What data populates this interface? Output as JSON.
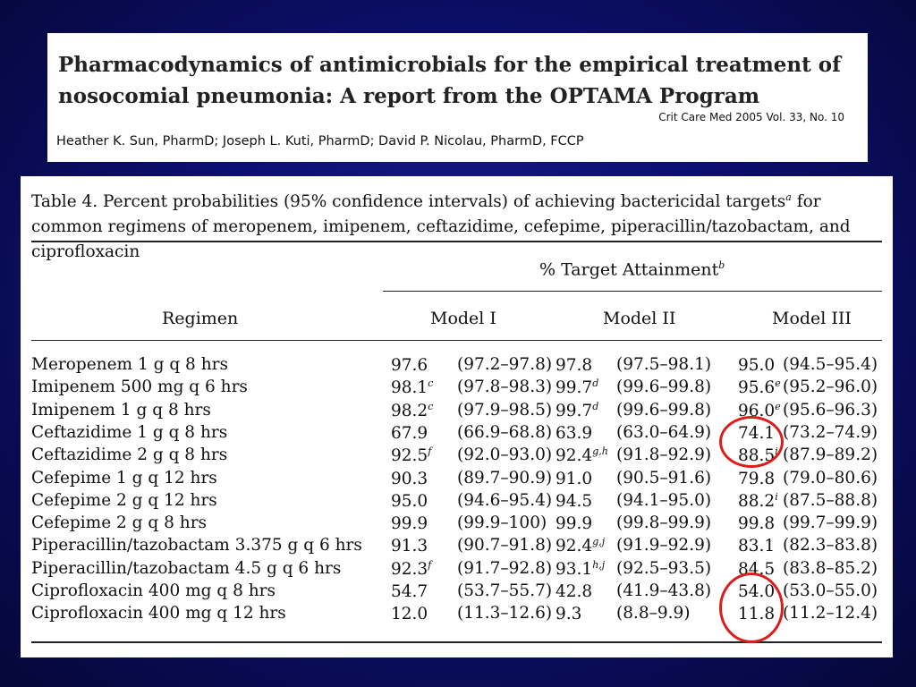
{
  "header": {
    "title": "Pharmacodynamics of antimicrobials for the empirical treatment of nosocomial pneumonia: A report from the OPTAMA Program",
    "citation": "Crit Care Med 2005 Vol. 33, No. 10",
    "authors": "Heather K. Sun, PharmD; Joseph L. Kuti, PharmD; David P. Nicolau, PharmD, FCCP"
  },
  "table": {
    "caption_pre": "Table 4. Percent probabilities (95% confidence intervals) of achieving bactericidal targets",
    "caption_sup": "a",
    "caption_post": " for common regimens of meropenem, imipenem, ceftazidime, cefepime, piperacillin/tazobactam, and ciprofloxacin",
    "span_header": "% Target Attainment",
    "span_header_sup": "b",
    "columns": [
      "Regimen",
      "Model I",
      "Model II",
      "Model III"
    ],
    "rows": [
      {
        "regimen": "Meropenem 1 g q 8 hrs",
        "m1": "97.6",
        "m1_sup": "",
        "m1_ci": "(97.2–97.8)",
        "m2": "97.8",
        "m2_sup": "",
        "m2_ci": "(97.5–98.1)",
        "m3": "95.0",
        "m3_sup": "",
        "m3_ci": "(94.5–95.4)"
      },
      {
        "regimen": "Imipenem 500 mg q 6 hrs",
        "m1": "98.1",
        "m1_sup": "c",
        "m1_ci": "(97.8–98.3)",
        "m2": "99.7",
        "m2_sup": "d",
        "m2_ci": "(99.6–99.8)",
        "m3": "95.6",
        "m3_sup": "e",
        "m3_ci": "(95.2–96.0)"
      },
      {
        "regimen": "Imipenem 1 g q 8 hrs",
        "m1": "98.2",
        "m1_sup": "c",
        "m1_ci": "(97.9–98.5)",
        "m2": "99.7",
        "m2_sup": "d",
        "m2_ci": "(99.6–99.8)",
        "m3": "96.0",
        "m3_sup": "e",
        "m3_ci": "(95.6–96.3)"
      },
      {
        "regimen": "Ceftazidime 1 g q 8 hrs",
        "m1": "67.9",
        "m1_sup": "",
        "m1_ci": "(66.9–68.8)",
        "m2": "63.9",
        "m2_sup": "",
        "m2_ci": "(63.0–64.9)",
        "m3": "74.1",
        "m3_sup": "",
        "m3_ci": "(73.2–74.9)"
      },
      {
        "regimen": "Ceftazidime 2 g q 8 hrs",
        "m1": "92.5",
        "m1_sup": "f",
        "m1_ci": "(92.0–93.0)",
        "m2": "92.4",
        "m2_sup": "g,h",
        "m2_ci": "(91.8–92.9)",
        "m3": "88.5",
        "m3_sup": "i",
        "m3_ci": "(87.9–89.2)"
      },
      {
        "regimen": "Cefepime 1 g q 12 hrs",
        "m1": "90.3",
        "m1_sup": "",
        "m1_ci": "(89.7–90.9)",
        "m2": "91.0",
        "m2_sup": "",
        "m2_ci": "(90.5–91.6)",
        "m3": "79.8",
        "m3_sup": "",
        "m3_ci": "(79.0–80.6)"
      },
      {
        "regimen": "Cefepime 2 g q 12 hrs",
        "m1": "95.0",
        "m1_sup": "",
        "m1_ci": "(94.6–95.4)",
        "m2": "94.5",
        "m2_sup": "",
        "m2_ci": "(94.1–95.0)",
        "m3": "88.2",
        "m3_sup": "i",
        "m3_ci": "(87.5–88.8)"
      },
      {
        "regimen": "Cefepime 2 g q 8 hrs",
        "m1": "99.9",
        "m1_sup": "",
        "m1_ci": "(99.9–100)",
        "m2": "99.9",
        "m2_sup": "",
        "m2_ci": "(99.8–99.9)",
        "m3": "99.8",
        "m3_sup": "",
        "m3_ci": "(99.7–99.9)"
      },
      {
        "regimen": "Piperacillin/tazobactam 3.375 g q 6 hrs",
        "m1": "91.3",
        "m1_sup": "",
        "m1_ci": "(90.7–91.8)",
        "m2": "92.4",
        "m2_sup": "g,j",
        "m2_ci": "(91.9–92.9)",
        "m3": "83.1",
        "m3_sup": "",
        "m3_ci": "(82.3–83.8)"
      },
      {
        "regimen": "Piperacillin/tazobactam 4.5 g q 6 hrs",
        "m1": "92.3",
        "m1_sup": "f",
        "m1_ci": "(91.7–92.8)",
        "m2": "93.1",
        "m2_sup": "h,j",
        "m2_ci": "(92.5–93.5)",
        "m3": "84.5",
        "m3_sup": "",
        "m3_ci": "(83.8–85.2)"
      },
      {
        "regimen": "Ciprofloxacin 400 mg q 8 hrs",
        "m1": "54.7",
        "m1_sup": "",
        "m1_ci": "(53.7–55.7)",
        "m2": "42.8",
        "m2_sup": "",
        "m2_ci": "(41.9–43.8)",
        "m3": "54.0",
        "m3_sup": "",
        "m3_ci": "(53.0–55.0)"
      },
      {
        "regimen": "Ciprofloxacin 400 mg q 12 hrs",
        "m1": "12.0",
        "m1_sup": "",
        "m1_ci": "(11.3–12.6)",
        "m2": "9.3",
        "m2_sup": "",
        "m2_ci": "(8.8–9.9)",
        "m3": "11.8",
        "m3_sup": "",
        "m3_ci": "(11.2–12.4)"
      }
    ]
  },
  "annotations": {
    "circle_color": "#dd1c1c"
  }
}
